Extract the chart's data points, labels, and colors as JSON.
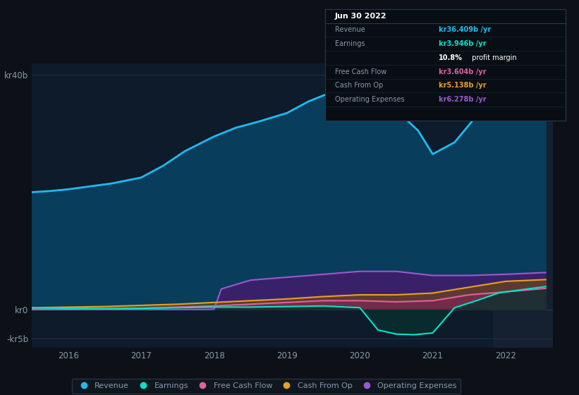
{
  "bg_color": "#0d1117",
  "plot_bg_color": "#0d1b2a",
  "highlight_bg_color": "#152030",
  "grid_color": "#1e3a4a",
  "text_color": "#8899aa",
  "y_label_top": "kr40b",
  "y_label_mid": "kr0",
  "y_label_bot": "-kr5b",
  "x_ticks": [
    2016,
    2017,
    2018,
    2019,
    2020,
    2021,
    2022
  ],
  "legend": [
    {
      "label": "Revenue",
      "color": "#1ebbf0"
    },
    {
      "label": "Earnings",
      "color": "#00e5cc"
    },
    {
      "label": "Free Cash Flow",
      "color": "#e060a0"
    },
    {
      "label": "Cash From Op",
      "color": "#e8a020"
    },
    {
      "label": "Operating Expenses",
      "color": "#9b59d0"
    }
  ],
  "tooltip_date": "Jun 30 2022",
  "tooltip_rows": [
    {
      "label": "Revenue",
      "value": "kr36.409b /yr",
      "color": "#1ebbf0"
    },
    {
      "label": "Earnings",
      "value": "kr3.946b /yr",
      "color": "#00e5cc"
    },
    {
      "label": "",
      "value": "10.8% profit margin",
      "color": "#ffffff"
    },
    {
      "label": "Free Cash Flow",
      "value": "kr3.604b /yr",
      "color": "#e060a0"
    },
    {
      "label": "Cash From Op",
      "value": "kr5.138b /yr",
      "color": "#e8a020"
    },
    {
      "label": "Operating Expenses",
      "value": "kr6.278b /yr",
      "color": "#9b59d0"
    }
  ],
  "revenue_x": [
    2015.5,
    2015.75,
    2016.0,
    2016.3,
    2016.6,
    2017.0,
    2017.3,
    2017.6,
    2018.0,
    2018.3,
    2018.6,
    2019.0,
    2019.3,
    2019.6,
    2019.9,
    2020.0,
    2020.2,
    2020.5,
    2020.8,
    2021.0,
    2021.3,
    2021.6,
    2021.9,
    2022.0,
    2022.3,
    2022.55
  ],
  "revenue_y": [
    20.0,
    20.2,
    20.5,
    21.0,
    21.5,
    22.5,
    24.5,
    27.0,
    29.5,
    31.0,
    32.0,
    33.5,
    35.5,
    37.0,
    38.0,
    38.5,
    37.0,
    34.0,
    30.5,
    26.5,
    28.5,
    33.0,
    36.0,
    36.5,
    37.5,
    38.0
  ],
  "earnings_x": [
    2015.5,
    2016.0,
    2016.5,
    2017.0,
    2017.5,
    2018.0,
    2018.5,
    2019.0,
    2019.5,
    2020.0,
    2020.25,
    2020.5,
    2020.75,
    2021.0,
    2021.3,
    2021.6,
    2021.9,
    2022.0,
    2022.3,
    2022.55
  ],
  "earnings_y": [
    0.3,
    0.2,
    0.15,
    0.2,
    0.3,
    0.4,
    0.4,
    0.5,
    0.6,
    0.3,
    -3.5,
    -4.2,
    -4.3,
    -4.0,
    0.3,
    1.5,
    2.8,
    3.0,
    3.5,
    3.9
  ],
  "fcf_x": [
    2015.5,
    2016.0,
    2016.5,
    2017.0,
    2017.5,
    2018.0,
    2018.5,
    2019.0,
    2019.5,
    2020.0,
    2020.5,
    2021.0,
    2021.5,
    2022.0,
    2022.55
  ],
  "fcf_y": [
    0.05,
    0.05,
    0.1,
    0.2,
    0.4,
    0.6,
    0.9,
    1.2,
    1.5,
    1.5,
    1.3,
    1.5,
    2.5,
    3.0,
    3.6
  ],
  "cashop_x": [
    2015.5,
    2016.0,
    2016.5,
    2017.0,
    2017.5,
    2018.0,
    2018.5,
    2019.0,
    2019.5,
    2020.0,
    2020.5,
    2021.0,
    2021.5,
    2022.0,
    2022.55
  ],
  "cashop_y": [
    0.3,
    0.4,
    0.5,
    0.7,
    0.9,
    1.2,
    1.5,
    1.8,
    2.2,
    2.5,
    2.5,
    2.8,
    3.8,
    4.8,
    5.1
  ],
  "opex_x": [
    2015.5,
    2016.0,
    2016.5,
    2016.9,
    2017.0,
    2017.9,
    2018.0,
    2018.1,
    2018.5,
    2019.0,
    2019.5,
    2020.0,
    2020.5,
    2021.0,
    2021.5,
    2022.0,
    2022.55
  ],
  "opex_y": [
    0.0,
    0.0,
    0.0,
    0.0,
    0.0,
    0.0,
    0.05,
    3.5,
    5.0,
    5.5,
    6.0,
    6.5,
    6.5,
    5.8,
    5.8,
    6.0,
    6.3
  ],
  "ylim": [
    -6.5,
    42
  ],
  "xlim": [
    2015.5,
    2022.65
  ],
  "highlight_x": 2021.83
}
